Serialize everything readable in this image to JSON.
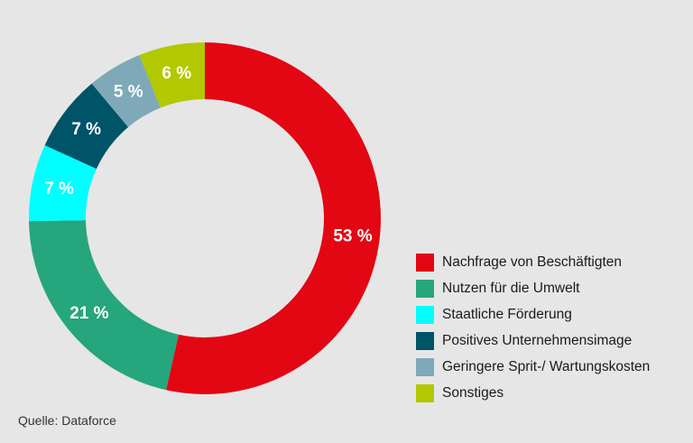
{
  "chart_data": {
    "type": "pie",
    "variant": "donut",
    "start": "top",
    "direction": "clockwise",
    "categories": [
      "Nachfrage von Beschäftigten",
      "Nutzen für die Umwelt",
      "Staatliche Förderung",
      "Positives Unternehmensimage",
      "Geringere Sprit-/ Wartungskosten",
      "Sonstiges"
    ],
    "values": [
      53,
      21,
      7,
      7,
      5,
      6
    ],
    "data_labels": [
      "53 %",
      "21 %",
      "7 %",
      "7 %",
      "5 %",
      "6 %"
    ],
    "colors": [
      "#e30613",
      "#26a67c",
      "#00ffff",
      "#005468",
      "#7fa9b9",
      "#b2c800"
    ],
    "legend_placement": "right"
  },
  "source": "Quelle: Dataforce"
}
